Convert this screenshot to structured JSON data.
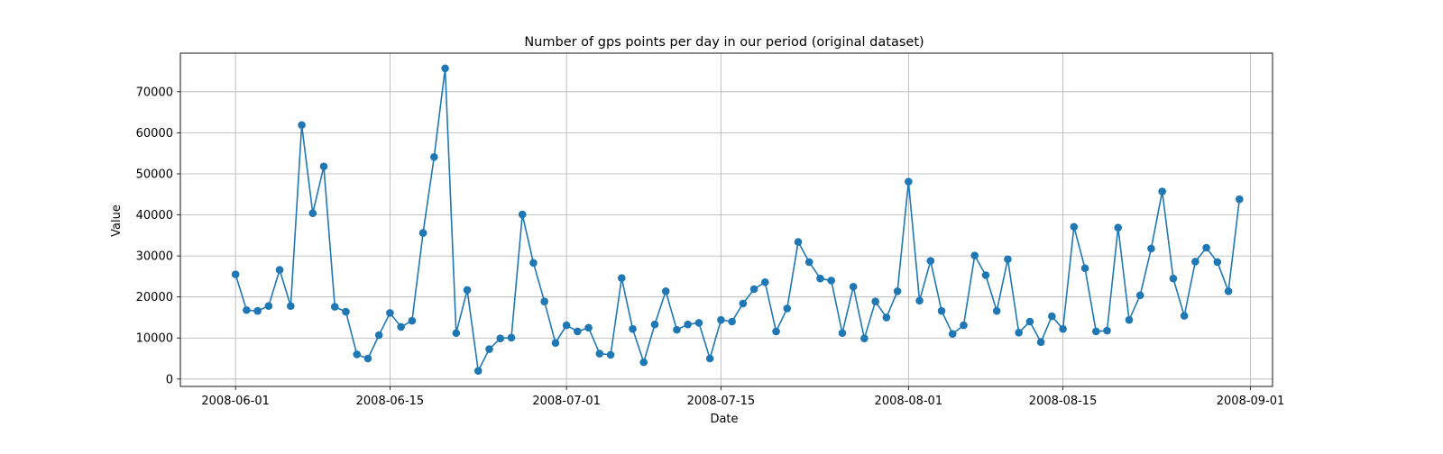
{
  "chart_data": {
    "type": "line",
    "title": "Number of gps points per day in our period (original dataset)",
    "xlabel": "Date",
    "ylabel": "Value",
    "xlim": [
      "2008-05-27",
      "2008-09-03"
    ],
    "ylim": [
      -1800,
      79400
    ],
    "x_ticks": [
      {
        "date": "2008-06-01",
        "label": "2008-06-01"
      },
      {
        "date": "2008-06-15",
        "label": "2008-06-15"
      },
      {
        "date": "2008-07-01",
        "label": "2008-07-01"
      },
      {
        "date": "2008-07-15",
        "label": "2008-07-15"
      },
      {
        "date": "2008-08-01",
        "label": "2008-08-01"
      },
      {
        "date": "2008-08-15",
        "label": "2008-08-15"
      },
      {
        "date": "2008-09-01",
        "label": "2008-09-01"
      }
    ],
    "y_ticks": [
      0,
      10000,
      20000,
      30000,
      40000,
      50000,
      60000,
      70000
    ],
    "grid": true,
    "color": "#1f77b4",
    "marker": "circle",
    "series": [
      {
        "points": [
          [
            "2008-06-01",
            25500
          ],
          [
            "2008-06-02",
            16800
          ],
          [
            "2008-06-03",
            16600
          ],
          [
            "2008-06-04",
            17800
          ],
          [
            "2008-06-05",
            26600
          ],
          [
            "2008-06-06",
            17800
          ],
          [
            "2008-06-07",
            61900
          ],
          [
            "2008-06-08",
            40400
          ],
          [
            "2008-06-09",
            51800
          ],
          [
            "2008-06-10",
            17600
          ],
          [
            "2008-06-11",
            16400
          ],
          [
            "2008-06-12",
            6000
          ],
          [
            "2008-06-13",
            5000
          ],
          [
            "2008-06-14",
            10700
          ],
          [
            "2008-06-15",
            16100
          ],
          [
            "2008-06-16",
            12700
          ],
          [
            "2008-06-17",
            14200
          ],
          [
            "2008-06-18",
            35600
          ],
          [
            "2008-06-19",
            54100
          ],
          [
            "2008-06-20",
            75700
          ],
          [
            "2008-06-21",
            11200
          ],
          [
            "2008-06-22",
            21700
          ],
          [
            "2008-06-23",
            2000
          ],
          [
            "2008-06-24",
            7300
          ],
          [
            "2008-06-25",
            9900
          ],
          [
            "2008-06-26",
            10100
          ],
          [
            "2008-06-27",
            40100
          ],
          [
            "2008-06-28",
            28300
          ],
          [
            "2008-06-29",
            18900
          ],
          [
            "2008-06-30",
            8800
          ],
          [
            "2008-07-01",
            13100
          ],
          [
            "2008-07-02",
            11600
          ],
          [
            "2008-07-03",
            12500
          ],
          [
            "2008-07-04",
            6200
          ],
          [
            "2008-07-05",
            5900
          ],
          [
            "2008-07-06",
            24600
          ],
          [
            "2008-07-07",
            12200
          ],
          [
            "2008-07-08",
            4100
          ],
          [
            "2008-07-09",
            13300
          ],
          [
            "2008-07-10",
            21400
          ],
          [
            "2008-07-11",
            12000
          ],
          [
            "2008-07-12",
            13300
          ],
          [
            "2008-07-13",
            13700
          ],
          [
            "2008-07-14",
            5000
          ],
          [
            "2008-07-15",
            14400
          ],
          [
            "2008-07-16",
            14000
          ],
          [
            "2008-07-17",
            18400
          ],
          [
            "2008-07-18",
            21900
          ],
          [
            "2008-07-19",
            23600
          ],
          [
            "2008-07-20",
            11600
          ],
          [
            "2008-07-21",
            17200
          ],
          [
            "2008-07-22",
            33400
          ],
          [
            "2008-07-23",
            28500
          ],
          [
            "2008-07-24",
            24500
          ],
          [
            "2008-07-25",
            24000
          ],
          [
            "2008-07-26",
            11200
          ],
          [
            "2008-07-27",
            22500
          ],
          [
            "2008-07-28",
            9900
          ],
          [
            "2008-07-29",
            18900
          ],
          [
            "2008-07-30",
            15000
          ],
          [
            "2008-07-31",
            21400
          ],
          [
            "2008-08-01",
            48100
          ],
          [
            "2008-08-02",
            19100
          ],
          [
            "2008-08-03",
            28800
          ],
          [
            "2008-08-04",
            16600
          ],
          [
            "2008-08-05",
            11000
          ],
          [
            "2008-08-06",
            13100
          ],
          [
            "2008-08-07",
            30100
          ],
          [
            "2008-08-08",
            25300
          ],
          [
            "2008-08-09",
            16600
          ],
          [
            "2008-08-10",
            29200
          ],
          [
            "2008-08-11",
            11300
          ],
          [
            "2008-08-12",
            14000
          ],
          [
            "2008-08-13",
            9000
          ],
          [
            "2008-08-14",
            15300
          ],
          [
            "2008-08-15",
            12200
          ],
          [
            "2008-08-16",
            37100
          ],
          [
            "2008-08-17",
            27000
          ],
          [
            "2008-08-18",
            11600
          ],
          [
            "2008-08-19",
            11800
          ],
          [
            "2008-08-20",
            36900
          ],
          [
            "2008-08-21",
            14400
          ],
          [
            "2008-08-22",
            20400
          ],
          [
            "2008-08-23",
            31800
          ],
          [
            "2008-08-24",
            45700
          ],
          [
            "2008-08-25",
            24500
          ],
          [
            "2008-08-26",
            15400
          ],
          [
            "2008-08-27",
            28600
          ],
          [
            "2008-08-28",
            32000
          ],
          [
            "2008-08-29",
            28500
          ],
          [
            "2008-08-30",
            21400
          ],
          [
            "2008-08-31",
            43800
          ]
        ]
      }
    ]
  }
}
